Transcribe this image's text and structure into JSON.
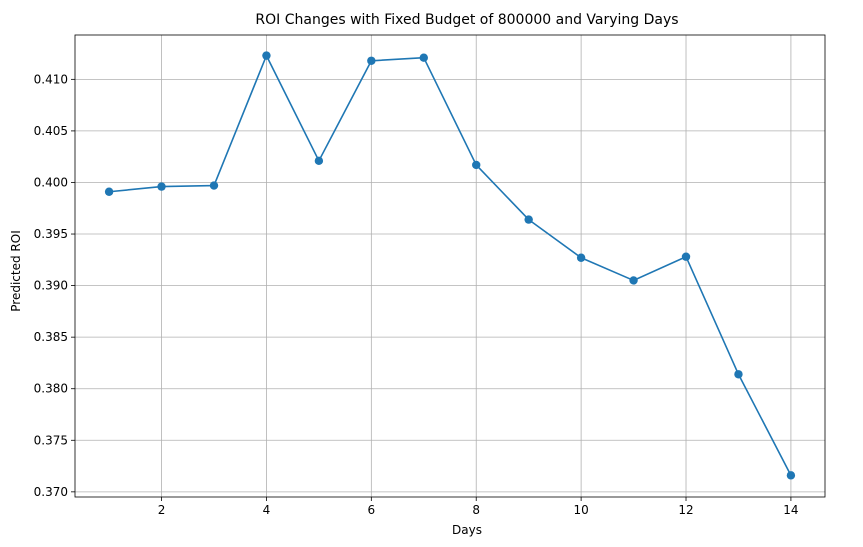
{
  "chart_data": {
    "type": "line",
    "title": "ROI Changes with Fixed Budget of 800000 and Varying Days",
    "xlabel": "Days",
    "ylabel": "Predicted ROI",
    "x": [
      1,
      2,
      3,
      4,
      5,
      6,
      7,
      8,
      9,
      10,
      11,
      12,
      13,
      14
    ],
    "series": [
      {
        "values": [
          0.3991,
          0.3996,
          0.3997,
          0.4123,
          0.4021,
          0.4118,
          0.4121,
          0.4017,
          0.3964,
          0.3927,
          0.3905,
          0.3928,
          0.3814,
          0.3716
        ],
        "color": "#1f77b4",
        "marker": "circle"
      }
    ],
    "xlim": [
      0.35,
      14.65
    ],
    "ylim": [
      0.3695,
      0.4143
    ],
    "xticks": [
      2,
      4,
      6,
      8,
      10,
      12,
      14
    ],
    "xtick_labels": [
      "2",
      "4",
      "6",
      "8",
      "10",
      "12",
      "14"
    ],
    "yticks": [
      0.37,
      0.375,
      0.38,
      0.385,
      0.39,
      0.395,
      0.4,
      0.405,
      0.41
    ],
    "ytick_labels": [
      "0.370",
      "0.375",
      "0.380",
      "0.385",
      "0.390",
      "0.395",
      "0.400",
      "0.405",
      "0.410"
    ],
    "grid": true
  }
}
